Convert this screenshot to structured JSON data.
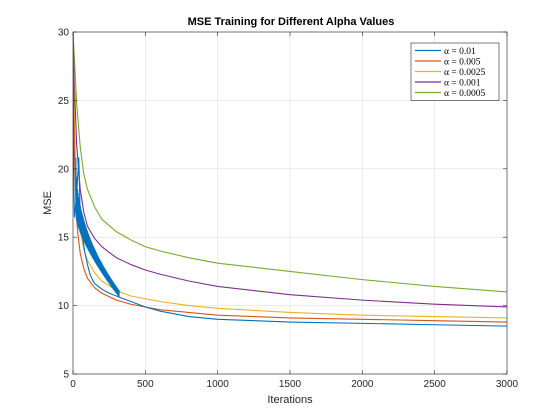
{
  "chart_data": {
    "type": "line",
    "title": "MSE Training for Different Alpha Values",
    "xlabel": "Iterations",
    "ylabel": "MSE",
    "xlim": [
      0,
      3000
    ],
    "ylim": [
      5,
      30
    ],
    "xticks": [
      0,
      500,
      1000,
      1500,
      2000,
      2500,
      3000
    ],
    "yticks": [
      5,
      10,
      15,
      20,
      25,
      30
    ],
    "grid": true,
    "legend_position": "top-right",
    "series": [
      {
        "name": "α = 0.01",
        "color": "#0072BD",
        "x": [
          0,
          5,
          10,
          20,
          30,
          40,
          50,
          60,
          80,
          100,
          120,
          150,
          200,
          250,
          300,
          400,
          500,
          600,
          800,
          1000,
          1500,
          2000,
          2500,
          3000
        ],
        "y": [
          30,
          19,
          16.5,
          17.5,
          19,
          20.8,
          16.5,
          15.5,
          14,
          13,
          12.2,
          11.6,
          11.2,
          10.9,
          10.7,
          10.3,
          9.9,
          9.6,
          9.2,
          9.0,
          8.8,
          8.7,
          8.6,
          8.5
        ],
        "oscillation": {
          "x_start": 20,
          "x_end": 320,
          "y_upper_start": 20.8,
          "y_lower_start": 16.5,
          "y_upper_end": 11.1,
          "y_lower_end": 10.6
        }
      },
      {
        "name": "α = 0.005",
        "color": "#D95319",
        "x": [
          0,
          10,
          20,
          30,
          50,
          75,
          100,
          150,
          200,
          300,
          400,
          500,
          600,
          800,
          1000,
          1500,
          2000,
          2500,
          3000
        ],
        "y": [
          30,
          21,
          17.5,
          15.6,
          13.8,
          12.7,
          12.0,
          11.3,
          10.9,
          10.4,
          10.1,
          9.9,
          9.7,
          9.5,
          9.3,
          9.1,
          9.0,
          8.9,
          8.8
        ]
      },
      {
        "name": "α = 0.0025",
        "color": "#EDB120",
        "x": [
          0,
          10,
          25,
          50,
          75,
          100,
          150,
          200,
          300,
          400,
          500,
          600,
          800,
          1000,
          1500,
          2000,
          2500,
          3000
        ],
        "y": [
          30,
          23,
          18.5,
          15.5,
          14.1,
          13.3,
          12.4,
          11.8,
          11.1,
          10.7,
          10.5,
          10.3,
          10.0,
          9.8,
          9.5,
          9.3,
          9.2,
          9.1
        ]
      },
      {
        "name": "α = 0.001",
        "color": "#7E2F8E",
        "x": [
          0,
          10,
          25,
          50,
          75,
          100,
          150,
          200,
          300,
          400,
          500,
          600,
          800,
          1000,
          1500,
          2000,
          2500,
          3000
        ],
        "y": [
          30,
          26,
          21.8,
          18.5,
          16.8,
          15.8,
          14.9,
          14.3,
          13.5,
          13.0,
          12.6,
          12.3,
          11.8,
          11.4,
          10.8,
          10.4,
          10.1,
          9.9
        ]
      },
      {
        "name": "α = 0.0005",
        "color": "#77AC30",
        "x": [
          0,
          10,
          25,
          50,
          75,
          100,
          150,
          200,
          300,
          400,
          500,
          600,
          800,
          1000,
          1500,
          2000,
          2500,
          3000
        ],
        "y": [
          30,
          28,
          24.8,
          21.6,
          19.6,
          18.5,
          17.2,
          16.3,
          15.4,
          14.8,
          14.3,
          14.0,
          13.5,
          13.1,
          12.5,
          11.9,
          11.4,
          11.0
        ]
      }
    ]
  }
}
